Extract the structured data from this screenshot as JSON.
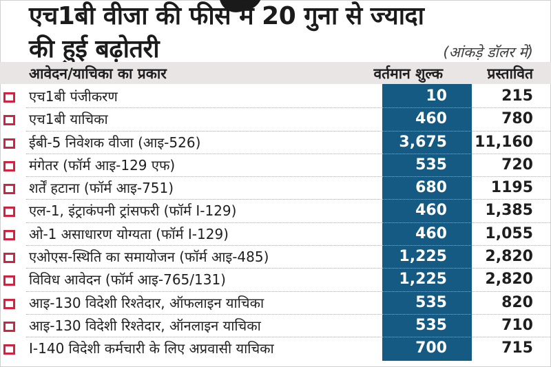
{
  "title": {
    "line1": "एच1बी वीजा की   फीस में 20 गुना से ज्यादा",
    "line2": "की हुई बढ़ोतरी"
  },
  "unit_note": "(आंकड़े डॉलर में)",
  "headers": {
    "type": "आवेदन/याचिका का प्रकार",
    "current": "वर्तमान शुल्क",
    "proposed": "प्रस्तावित"
  },
  "colors": {
    "bullet": "#d3223f",
    "current_column": "#155a83",
    "header_band": "#e9e5e5"
  },
  "rows": [
    {
      "type": "एच1बी पंजीकरण",
      "current": "10",
      "proposed": "215"
    },
    {
      "type": "एच1बी याचिका",
      "current": "460",
      "proposed": "780"
    },
    {
      "type": "ईबी-5 निवेशक वीजा (आइ-526)",
      "current": "3,675",
      "proposed": "11,160"
    },
    {
      "type": "मंगेतर (फॉर्म आइ-129 एफ)",
      "current": "535",
      "proposed": "720"
    },
    {
      "type": "शर्तें हटाना (फॉर्म आइ-751)",
      "current": "680",
      "proposed": "1195"
    },
    {
      "type": "एल-1,  इंट्राकंपनी ट्रांसफरी (फॉर्म I-129)",
      "current": "460",
      "proposed": "1,385"
    },
    {
      "type": "ओ-1 असाधारण योग्यता (फॉर्म I-129)",
      "current": "460",
      "proposed": "1,055"
    },
    {
      "type": "एओएस-स्थिति का समायोजन (फॉर्म आइ-485)",
      "current": "1,225",
      "proposed": "2,820"
    },
    {
      "type": "विविध आवेदन (फॉर्म आइ-765/131)",
      "current": "1,225",
      "proposed": "2,820"
    },
    {
      "type": "आइ-130 विदेशी रिश्तेदार, ऑफलाइन याचिका",
      "current": "535",
      "proposed": "820"
    },
    {
      "type": "आइ-130 विदेशी रिश्तेदार, ऑनलाइन याचिका",
      "current": "535",
      "proposed": "710"
    },
    {
      "type": "I-140 विदेशी कर्मचारी के लिए अप्रवासी याचिका",
      "current": "700",
      "proposed": "715"
    }
  ]
}
